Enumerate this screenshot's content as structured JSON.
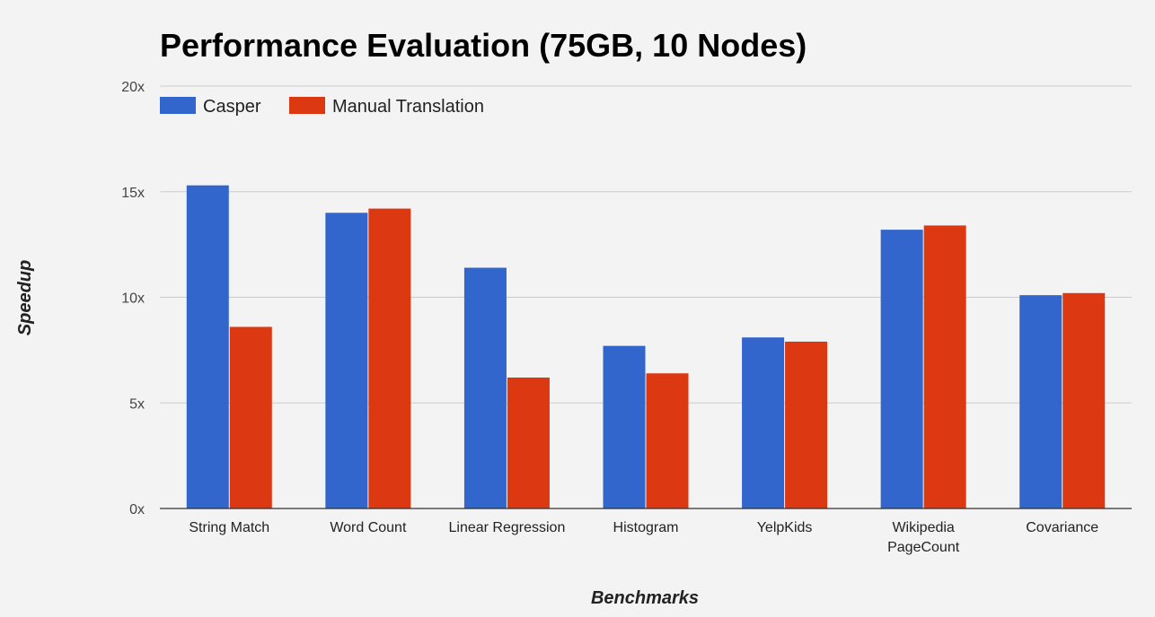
{
  "chart_data": {
    "type": "bar",
    "title": "Performance Evaluation (75GB, 10 Nodes)",
    "xlabel": "Benchmarks",
    "ylabel": "Speedup",
    "categories": [
      [
        "String Match"
      ],
      [
        "Word Count"
      ],
      [
        "Linear Regression"
      ],
      [
        "Histogram"
      ],
      [
        "YelpKids"
      ],
      [
        "Wikipedia",
        "PageCount"
      ],
      [
        "Covariance"
      ]
    ],
    "series": [
      {
        "name": "Casper",
        "color": "#3366cc",
        "values": [
          15.3,
          14.0,
          11.4,
          7.7,
          8.1,
          13.2,
          10.1
        ]
      },
      {
        "name": "Manual Translation",
        "color": "#dc3912",
        "values": [
          8.6,
          14.2,
          6.2,
          6.4,
          7.9,
          13.4,
          10.2
        ]
      }
    ],
    "ylim": [
      0,
      20
    ],
    "yticks": [
      0,
      5,
      10,
      15,
      20
    ],
    "ytick_labels": [
      "0x",
      "5x",
      "10x",
      "15x",
      "20x"
    ],
    "grid": true,
    "legend_position": "top-left"
  }
}
